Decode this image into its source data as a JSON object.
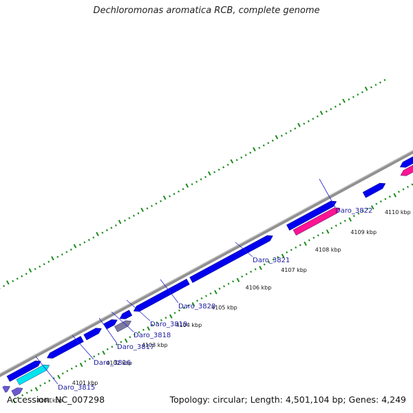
{
  "title": "Dechloromonas aromatica RCB, complete genome",
  "accession": "Accession: NC_007298",
  "topology": "Topology: circular; Length: 4,501,104 bp; Genes: 4,249",
  "colors": {
    "backbone": "#909090",
    "cds": "#0000ee",
    "rrna": "#ff1493",
    "trna": "#00e5ee",
    "misc": "#6a5acd",
    "pseudo": "#7d7aa0",
    "ticks": "#1a8a1a",
    "label_line": "#2222cc"
  },
  "kbp_ticks": [
    {
      "text": "4100 kbp"
    },
    {
      "text": "4101 kbp"
    },
    {
      "text": "4102 kbp"
    },
    {
      "text": "4103 kbp"
    },
    {
      "text": "4104 kbp"
    },
    {
      "text": "4105 kbp"
    },
    {
      "text": "4106 kbp"
    },
    {
      "text": "4107 kbp"
    },
    {
      "text": "4108 kbp"
    },
    {
      "text": "4109 kbp"
    },
    {
      "text": "4110 kbp"
    }
  ],
  "gene_labels": [
    {
      "text": "Daro_3815"
    },
    {
      "text": "Daro_3816"
    },
    {
      "text": "Daro_3817"
    },
    {
      "text": "Daro_3818"
    },
    {
      "text": "Daro_3819"
    },
    {
      "text": "Daro_3820"
    },
    {
      "text": "Daro_3821"
    },
    {
      "text": "Daro_3822"
    }
  ]
}
